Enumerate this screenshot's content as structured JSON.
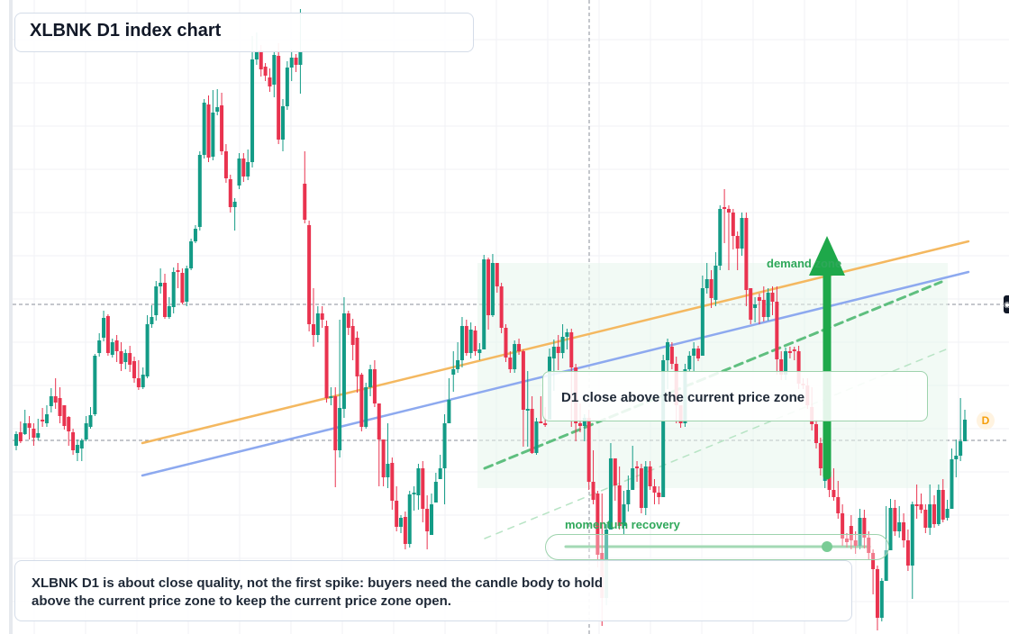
{
  "title": "XLBNK D1 index chart",
  "callout": "D1 close above the current price zone",
  "note": {
    "line1": "XLBNK D1 is about close quality, not the first spike: buyers need the candle body to hold",
    "line2": "above the current price zone to keep the current price zone open."
  },
  "annotations": {
    "demand": "demand zone",
    "momentum": "momentum recovery",
    "marker": "D"
  },
  "colors": {
    "up": "#139b86",
    "down": "#e9334f",
    "orange": "#f4b860",
    "blue": "#8da9ef",
    "green": "#2fa85a",
    "zone": "#e8f6ec"
  },
  "icons": {
    "edge_marker": "price-tag-icon",
    "arrow": "arrow-up-icon"
  },
  "chart_data": {
    "type": "candlestick",
    "title": "XLBNK D1 index chart",
    "xlabel": "",
    "ylabel": "",
    "ylim": [
      0,
      704
    ],
    "reference_levels": [
      338,
      489
    ],
    "candles": [
      [
        495,
        482,
        500,
        479
      ],
      [
        480,
        490,
        492,
        468
      ],
      [
        482,
        470,
        483,
        455
      ],
      [
        470,
        475,
        488,
        462
      ],
      [
        476,
        486,
        495,
        470
      ],
      [
        486,
        481,
        489,
        465
      ],
      [
        466,
        468,
        474,
        453
      ],
      [
        470,
        460,
        474,
        450
      ],
      [
        451,
        440,
        458,
        431
      ],
      [
        440,
        447,
        454,
        420
      ],
      [
        442,
        462,
        470,
        430
      ],
      [
        450,
        473,
        477,
        460
      ],
      [
        463,
        479,
        495,
        462
      ],
      [
        480,
        500,
        505,
        476
      ],
      [
        503,
        494,
        512,
        488
      ],
      [
        498,
        489,
        512,
        487
      ],
      [
        488,
        470,
        490,
        462
      ],
      [
        474,
        461,
        476,
        452
      ],
      [
        460,
        395,
        462,
        393
      ],
      [
        392,
        378,
        396,
        370
      ],
      [
        375,
        353,
        379,
        345
      ],
      [
        351,
        392,
        395,
        349
      ],
      [
        394,
        380,
        397,
        376
      ],
      [
        378,
        390,
        402,
        372
      ],
      [
        390,
        404,
        412,
        380
      ],
      [
        402,
        392,
        410,
        388
      ],
      [
        392,
        405,
        413,
        384
      ],
      [
        401,
        420,
        425,
        396
      ],
      [
        420,
        430,
        433,
        400
      ],
      [
        430,
        416,
        432,
        408
      ],
      [
        418,
        360,
        420,
        350
      ],
      [
        360,
        352,
        364,
        339
      ],
      [
        350,
        318,
        356,
        312
      ],
      [
        318,
        314,
        326,
        298
      ],
      [
        314,
        352,
        354,
        304
      ],
      [
        352,
        340,
        354,
        330
      ],
      [
        341,
        302,
        348,
        297
      ],
      [
        300,
        300,
        320,
        292
      ],
      [
        303,
        336,
        338,
        298
      ],
      [
        335,
        298,
        340,
        295
      ],
      [
        298,
        268,
        300,
        265
      ],
      [
        268,
        254,
        270,
        250
      ],
      [
        252,
        172,
        256,
        168
      ],
      [
        172,
        114,
        176,
        110
      ],
      [
        116,
        175,
        180,
        106
      ],
      [
        174,
        125,
        178,
        100
      ],
      [
        124,
        119,
        128,
        99
      ],
      [
        117,
        168,
        172,
        103
      ],
      [
        168,
        198,
        203,
        160
      ],
      [
        199,
        230,
        236,
        194
      ],
      [
        230,
        224,
        256,
        220
      ],
      [
        206,
        176,
        210,
        170
      ],
      [
        176,
        196,
        202,
        170
      ],
      [
        196,
        180,
        200,
        166
      ],
      [
        180,
        66,
        186,
        40
      ],
      [
        66,
        58,
        72,
        36
      ],
      [
        56,
        77,
        85,
        50
      ],
      [
        74,
        84,
        90,
        70
      ],
      [
        86,
        96,
        102,
        76
      ],
      [
        94,
        61,
        108,
        56
      ],
      [
        62,
        155,
        160,
        48
      ],
      [
        155,
        118,
        168,
        110
      ],
      [
        118,
        75,
        122,
        68
      ],
      [
        75,
        64,
        90,
        55
      ],
      [
        64,
        72,
        80,
        60
      ],
      [
        72,
        58,
        104,
        10
      ],
      [
        204,
        244,
        248,
        168
      ],
      [
        250,
        360,
        368,
        245
      ],
      [
        360,
        372,
        385,
        320
      ],
      [
        372,
        348,
        380,
        340
      ],
      [
        348,
        355,
        364,
        340
      ],
      [
        362,
        442,
        447,
        356
      ],
      [
        442,
        440,
        450,
        430
      ],
      [
        440,
        500,
        541,
        430
      ],
      [
        500,
        453,
        508,
        355
      ],
      [
        454,
        348,
        464,
        330
      ],
      [
        348,
        364,
        372,
        345
      ],
      [
        362,
        383,
        400,
        354
      ],
      [
        375,
        418,
        436,
        368
      ],
      [
        416,
        474,
        479,
        414
      ],
      [
        474,
        430,
        476,
        425
      ],
      [
        430,
        410,
        440,
        405
      ],
      [
        410,
        448,
        452,
        400
      ],
      [
        448,
        488,
        540,
        450
      ],
      [
        488,
        530,
        540,
        488
      ],
      [
        530,
        515,
        542,
        470
      ],
      [
        514,
        556,
        566,
        508
      ],
      [
        556,
        585,
        590,
        540
      ],
      [
        585,
        575,
        592,
        572
      ],
      [
        574,
        604,
        610,
        568
      ],
      [
        604,
        549,
        608,
        545
      ],
      [
        549,
        547,
        567,
        540
      ],
      [
        550,
        520,
        566,
        515
      ],
      [
        520,
        565,
        580,
        512
      ],
      [
        565,
        590,
        610,
        550
      ],
      [
        594,
        560,
        592,
        548
      ],
      [
        558,
        535,
        545,
        525
      ],
      [
        532,
        520,
        524,
        505
      ],
      [
        520,
        470,
        560,
        460
      ],
      [
        470,
        444,
        458,
        420
      ],
      [
        416,
        410,
        435,
        390
      ],
      [
        410,
        400,
        414,
        380
      ],
      [
        400,
        362,
        408,
        352
      ],
      [
        362,
        392,
        395,
        355
      ],
      [
        392,
        366,
        398,
        358
      ],
      [
        367,
        390,
        395,
        362
      ],
      [
        392,
        388,
        400,
        381
      ],
      [
        388,
        288,
        292,
        283
      ],
      [
        288,
        350,
        366,
        286
      ],
      [
        350,
        292,
        352,
        282
      ],
      [
        292,
        318,
        325,
        303
      ],
      [
        318,
        364,
        370,
        314
      ],
      [
        364,
        397,
        402,
        360
      ],
      [
        397,
        410,
        414,
        390
      ],
      [
        410,
        382,
        414,
        378
      ],
      [
        382,
        390,
        394,
        376
      ],
      [
        390,
        455,
        496,
        388
      ],
      [
        455,
        454,
        496,
        412
      ],
      [
        454,
        503,
        504,
        440
      ],
      [
        503,
        468,
        505,
        464
      ],
      [
        468,
        470,
        470,
        440
      ],
      [
        470,
        470,
        474,
        452
      ],
      [
        466,
        396,
        418,
        387
      ],
      [
        398,
        385,
        434,
        377
      ],
      [
        385,
        392,
        411,
        372
      ],
      [
        392,
        374,
        398,
        360
      ],
      [
        374,
        369,
        388,
        365
      ],
      [
        369,
        408,
        474,
        365
      ],
      [
        408,
        470,
        490,
        404
      ],
      [
        470,
        473,
        480,
        448
      ],
      [
        473,
        464,
        490,
        460
      ],
      [
        464,
        535,
        544,
        455
      ],
      [
        535,
        555,
        560,
        500
      ],
      [
        548,
        616,
        630,
        545
      ],
      [
        614,
        664,
        695,
        548
      ],
      [
        664,
        588,
        672,
        582
      ],
      [
        588,
        509,
        540,
        492
      ],
      [
        509,
        539,
        556,
        512
      ],
      [
        539,
        584,
        588,
        518
      ],
      [
        584,
        560,
        594,
        545
      ],
      [
        560,
        544,
        568,
        528
      ],
      [
        544,
        520,
        524,
        495
      ],
      [
        518,
        518,
        535,
        512
      ],
      [
        520,
        564,
        570,
        515
      ],
      [
        564,
        518,
        572,
        512
      ],
      [
        518,
        540,
        544,
        512
      ],
      [
        540,
        547,
        560,
        532
      ],
      [
        547,
        552,
        560,
        540
      ],
      [
        552,
        400,
        404,
        394
      ],
      [
        400,
        380,
        432,
        376
      ],
      [
        385,
        404,
        410,
        380
      ],
      [
        404,
        450,
        470,
        396
      ],
      [
        450,
        470,
        475,
        450
      ],
      [
        470,
        410,
        474,
        404
      ],
      [
        410,
        395,
        412,
        390
      ],
      [
        395,
        387,
        412,
        380
      ],
      [
        387,
        398,
        401,
        384
      ],
      [
        395,
        320,
        326,
        306
      ],
      [
        320,
        310,
        326,
        292
      ],
      [
        310,
        331,
        342,
        300
      ],
      [
        333,
        295,
        340,
        280
      ],
      [
        295,
        232,
        300,
        228
      ],
      [
        230,
        232,
        270,
        210
      ],
      [
        232,
        236,
        300,
        228
      ],
      [
        236,
        262,
        277,
        232
      ],
      [
        262,
        276,
        300,
        257
      ],
      [
        276,
        242,
        284,
        236
      ],
      [
        242,
        322,
        340,
        236
      ],
      [
        320,
        355,
        360,
        340
      ],
      [
        342,
        338,
        358,
        330
      ],
      [
        330,
        334,
        360,
        326
      ],
      [
        333,
        352,
        357,
        318
      ],
      [
        352,
        325,
        356,
        320
      ],
      [
        325,
        335,
        350,
        318
      ],
      [
        335,
        399,
        416,
        318
      ],
      [
        399,
        416,
        422,
        390
      ],
      [
        416,
        390,
        422,
        386
      ],
      [
        390,
        392,
        398,
        385
      ],
      [
        388,
        390,
        400,
        385
      ],
      [
        390,
        426,
        432,
        384
      ],
      [
        426,
        428,
        432,
        420
      ],
      [
        428,
        450,
        454,
        420
      ],
      [
        452,
        471,
        478,
        430
      ],
      [
        471,
        492,
        498,
        466
      ],
      [
        492,
        520,
        528,
        486
      ],
      [
        534,
        525,
        542,
        520
      ],
      [
        524,
        544,
        552,
        520
      ],
      [
        544,
        552,
        556,
        520
      ],
      [
        552,
        570,
        576,
        534
      ],
      [
        570,
        598,
        606,
        560
      ],
      [
        598,
        602,
        608,
        592
      ],
      [
        584,
        600,
        610,
        572
      ],
      [
        600,
        606,
        615,
        590
      ],
      [
        606,
        575,
        610,
        565
      ],
      [
        575,
        597,
        609,
        566
      ],
      [
        597,
        614,
        622,
        590
      ],
      [
        614,
        632,
        660,
        610
      ],
      [
        632,
        686,
        700,
        628
      ],
      [
        686,
        645,
        690,
        642
      ],
      [
        645,
        611,
        626,
        562
      ],
      [
        611,
        564,
        592,
        554
      ],
      [
        564,
        590,
        595,
        555
      ],
      [
        590,
        580,
        597,
        562
      ],
      [
        580,
        600,
        608,
        570
      ],
      [
        600,
        628,
        634,
        588
      ],
      [
        628,
        560,
        665,
        557
      ],
      [
        560,
        560,
        576,
        538
      ],
      [
        560,
        566,
        570,
        548
      ],
      [
        566,
        586,
        592,
        560
      ],
      [
        586,
        560,
        594,
        538
      ],
      [
        560,
        582,
        586,
        550
      ],
      [
        582,
        544,
        584,
        538
      ],
      [
        544,
        577,
        580,
        532
      ],
      [
        575,
        565,
        578,
        555
      ],
      [
        565,
        510,
        518,
        498
      ],
      [
        510,
        506,
        530,
        488
      ],
      [
        506,
        490,
        512,
        442
      ],
      [
        490,
        466,
        477,
        455
      ]
    ],
    "trendlines": [
      {
        "color": "orange",
        "from": [
          158,
          492
        ],
        "to": [
          1075,
          268
        ]
      },
      {
        "color": "blue",
        "from": [
          158,
          528
        ],
        "to": [
          1075,
          302
        ]
      },
      {
        "color": "green-dashed",
        "from": [
          538,
          520
        ],
        "to": [
          1045,
          313
        ]
      },
      {
        "color": "green-light-dashed",
        "from": [
          538,
          598
        ],
        "to": [
          1050,
          388
        ]
      }
    ],
    "zones": [
      {
        "name": "demand zone",
        "x": [
          530,
          1052
        ],
        "y": [
          292,
          542
        ]
      }
    ],
    "arrow": {
      "x": 918,
      "from": 528,
      "to": 262
    },
    "momentum": {
      "from": [
        628,
        607
      ],
      "to": [
        965,
        607
      ],
      "dot": [
        918,
        607
      ]
    }
  }
}
